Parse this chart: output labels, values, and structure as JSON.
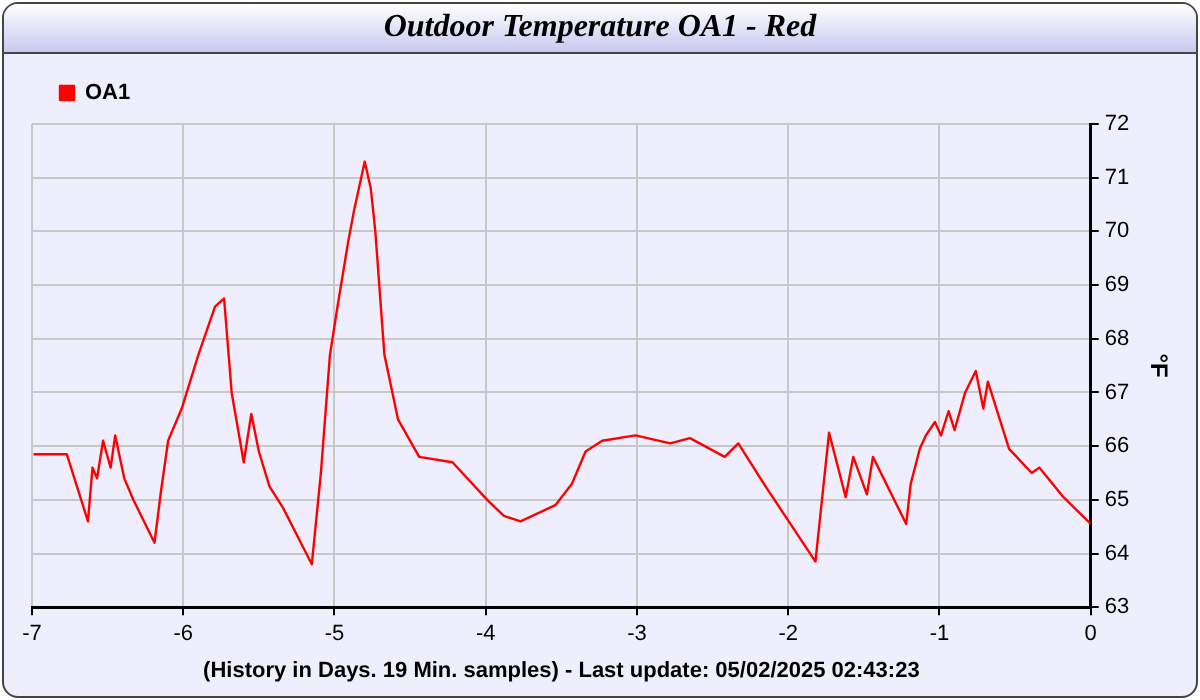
{
  "chart_data": {
    "type": "line",
    "title": "Outdoor Temperature OA1 - Red",
    "xlabel": "(History in Days. 19 Min. samples) - Last update: 05/02/2025 02:43:23",
    "ylabel": "°F",
    "series": [
      {
        "name": "OA1",
        "color": "#ff0000",
        "x": [
          -6.99,
          -6.77,
          -6.63,
          -6.6,
          -6.57,
          -6.53,
          -6.48,
          -6.45,
          -6.39,
          -6.33,
          -6.19,
          -6.15,
          -6.1,
          -6.01,
          -5.9,
          -5.79,
          -5.73,
          -5.68,
          -5.6,
          -5.55,
          -5.5,
          -5.43,
          -5.34,
          -5.15,
          -5.09,
          -5.03,
          -4.98,
          -4.91,
          -4.87,
          -4.8,
          -4.76,
          -4.73,
          -4.67,
          -4.58,
          -4.44,
          -4.22,
          -3.99,
          -3.88,
          -3.77,
          -3.54,
          -3.43,
          -3.34,
          -3.23,
          -3.01,
          -2.78,
          -2.65,
          -2.42,
          -2.33,
          -2.15,
          -1.82,
          -1.73,
          -1.62,
          -1.57,
          -1.48,
          -1.44,
          -1.22,
          -1.19,
          -1.13,
          -1.09,
          -1.03,
          -0.99,
          -0.94,
          -0.9,
          -0.83,
          -0.76,
          -0.71,
          -0.68,
          -0.54,
          -0.39,
          -0.34,
          -0.18,
          0
        ],
        "values": [
          65.85,
          65.85,
          64.6,
          65.6,
          65.4,
          66.1,
          65.6,
          66.2,
          65.4,
          65.0,
          64.2,
          65.1,
          66.1,
          66.7,
          67.7,
          68.6,
          68.75,
          67.0,
          65.7,
          66.6,
          65.9,
          65.25,
          64.85,
          63.8,
          65.5,
          67.7,
          68.6,
          69.8,
          70.4,
          71.3,
          70.8,
          70.0,
          67.7,
          66.5,
          65.8,
          65.7,
          65.0,
          64.7,
          64.6,
          64.9,
          65.3,
          65.9,
          66.1,
          66.2,
          66.05,
          66.15,
          65.8,
          66.05,
          65.25,
          63.85,
          66.25,
          65.05,
          65.8,
          65.1,
          65.8,
          64.55,
          65.3,
          65.95,
          66.2,
          66.45,
          66.2,
          66.65,
          66.3,
          67.0,
          67.4,
          66.7,
          67.2,
          65.95,
          65.5,
          65.6,
          65.05,
          64.55
        ]
      }
    ],
    "xlim": [
      -7,
      0
    ],
    "xticks": [
      -7,
      -6,
      -5,
      -4,
      -3,
      -2,
      -1,
      0
    ],
    "ylim": [
      63,
      72
    ],
    "yticks": [
      63,
      64,
      65,
      66,
      67,
      68,
      69,
      70,
      71,
      72
    ],
    "grid": true,
    "legend": "top left",
    "marker": "none",
    "line_style": "solid"
  }
}
